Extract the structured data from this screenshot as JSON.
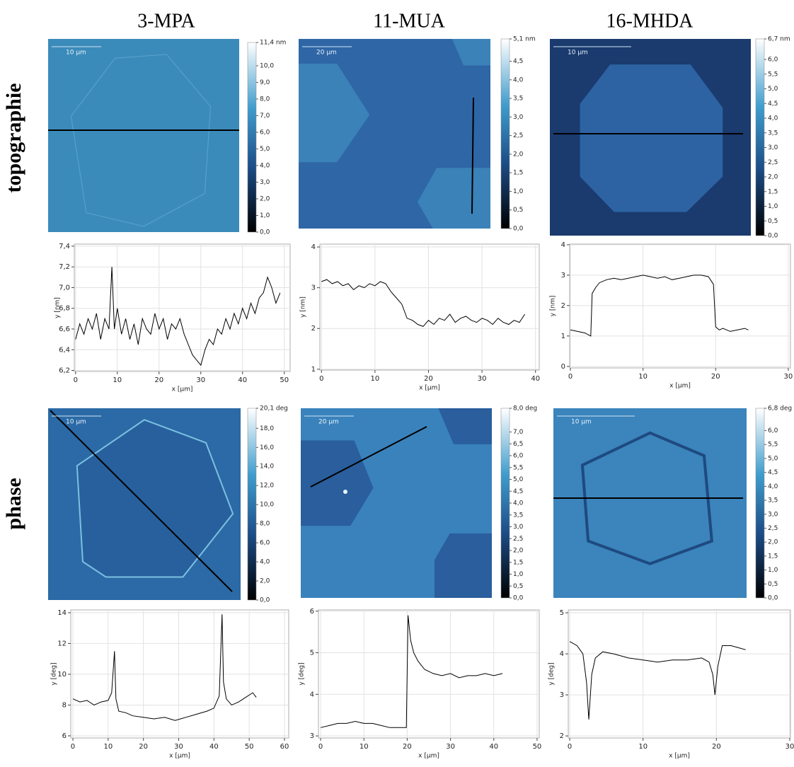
{
  "columns": [
    "3-MPA",
    "11-MUA",
    "16-MHDA"
  ],
  "rows": [
    "topographie",
    "phase"
  ],
  "panels": [
    {
      "scalebar": "10 µm",
      "colorbar": {
        "clim": [
          0,
          11.4
        ],
        "ticks": [
          {
            "value": 11.4,
            "label": "11,4 nm"
          },
          {
            "value": 10,
            "label": "10,0"
          },
          {
            "value": 9,
            "label": "9,0"
          },
          {
            "value": 8,
            "label": "8,0"
          },
          {
            "value": 7,
            "label": "7,0"
          },
          {
            "value": 6,
            "label": "6,0"
          },
          {
            "value": 5,
            "label": "5,0"
          },
          {
            "value": 4,
            "label": "4,0"
          },
          {
            "value": 3,
            "label": "3,0"
          },
          {
            "value": 2,
            "label": "2,0"
          },
          {
            "value": 1,
            "label": "1,0"
          },
          {
            "value": 0,
            "label": "0,0"
          }
        ]
      }
    },
    {
      "scalebar": "20 µm",
      "colorbar": {
        "clim": [
          0,
          5.1
        ],
        "ticks": [
          {
            "value": 5.1,
            "label": "5,1 nm"
          },
          {
            "value": 4.5,
            "label": "4,5"
          },
          {
            "value": 4,
            "label": "4,0"
          },
          {
            "value": 3.5,
            "label": "3,5"
          },
          {
            "value": 3,
            "label": "3,0"
          },
          {
            "value": 2.5,
            "label": "2,5"
          },
          {
            "value": 2,
            "label": "2,0"
          },
          {
            "value": 1.5,
            "label": "1,5"
          },
          {
            "value": 1,
            "label": "1,0"
          },
          {
            "value": 0.5,
            "label": "0,5"
          },
          {
            "value": 0,
            "label": "0,0"
          }
        ]
      }
    },
    {
      "scalebar": "10 µm",
      "colorbar": {
        "clim": [
          0,
          6.7
        ],
        "ticks": [
          {
            "value": 6.7,
            "label": "6,7 nm"
          },
          {
            "value": 6,
            "label": "6,0"
          },
          {
            "value": 5.5,
            "label": "5,5"
          },
          {
            "value": 5,
            "label": "5,0"
          },
          {
            "value": 4.5,
            "label": "4,5"
          },
          {
            "value": 4,
            "label": "4,0"
          },
          {
            "value": 3.5,
            "label": "3,5"
          },
          {
            "value": 3,
            "label": "3,0"
          },
          {
            "value": 2.5,
            "label": "2,5"
          },
          {
            "value": 2,
            "label": "2,0"
          },
          {
            "value": 1.5,
            "label": "1,5"
          },
          {
            "value": 1,
            "label": "1,0"
          },
          {
            "value": 0.5,
            "label": "0,5"
          },
          {
            "value": 0,
            "label": "0,0"
          }
        ]
      }
    },
    {
      "scalebar": "10 µm",
      "colorbar": {
        "clim": [
          0,
          20.1
        ],
        "ticks": [
          {
            "value": 20.1,
            "label": "20,1 deg"
          },
          {
            "value": 18,
            "label": "18,0"
          },
          {
            "value": 16,
            "label": "16,0"
          },
          {
            "value": 14,
            "label": "14,0"
          },
          {
            "value": 12,
            "label": "12,0"
          },
          {
            "value": 10,
            "label": "10,0"
          },
          {
            "value": 8,
            "label": "8,0"
          },
          {
            "value": 6,
            "label": "6,0"
          },
          {
            "value": 4,
            "label": "4,0"
          },
          {
            "value": 2,
            "label": "2,0"
          },
          {
            "value": 0,
            "label": "0,0"
          }
        ]
      }
    },
    {
      "scalebar": "20 µm",
      "colorbar": {
        "clim": [
          0,
          8
        ],
        "ticks": [
          {
            "value": 8,
            "label": "8,0 deg"
          },
          {
            "value": 7,
            "label": "7,0"
          },
          {
            "value": 6.5,
            "label": "6,5"
          },
          {
            "value": 6,
            "label": "6,0"
          },
          {
            "value": 5.5,
            "label": "5,5"
          },
          {
            "value": 5,
            "label": "5,0"
          },
          {
            "value": 4.5,
            "label": "4,5"
          },
          {
            "value": 4,
            "label": "4,0"
          },
          {
            "value": 3.5,
            "label": "3,5"
          },
          {
            "value": 3,
            "label": "3,0"
          },
          {
            "value": 2.5,
            "label": "2,5"
          },
          {
            "value": 2,
            "label": "2,0"
          },
          {
            "value": 1.5,
            "label": "1,5"
          },
          {
            "value": 1,
            "label": "1,0"
          },
          {
            "value": 0.5,
            "label": "0,5"
          },
          {
            "value": 0,
            "label": "0,0"
          }
        ]
      }
    },
    {
      "scalebar": "10 µm",
      "colorbar": {
        "clim": [
          0,
          6.8
        ],
        "ticks": [
          {
            "value": 6.8,
            "label": "6,8 deg"
          },
          {
            "value": 6,
            "label": "6,0"
          },
          {
            "value": 5.5,
            "label": "5,5"
          },
          {
            "value": 5,
            "label": "5,0"
          },
          {
            "value": 4.5,
            "label": "4,5"
          },
          {
            "value": 4,
            "label": "4,0"
          },
          {
            "value": 3.5,
            "label": "3,5"
          },
          {
            "value": 3,
            "label": "3,0"
          },
          {
            "value": 2.5,
            "label": "2,5"
          },
          {
            "value": 2,
            "label": "2,0"
          },
          {
            "value": 1.5,
            "label": "1,5"
          },
          {
            "value": 1,
            "label": "1,0"
          },
          {
            "value": 0.5,
            "label": "0,5"
          },
          {
            "value": 0,
            "label": "0,0"
          }
        ]
      }
    }
  ],
  "chart_data": [
    {
      "type": "line",
      "xlabel": "x [µm]",
      "ylabel": "y [nm]",
      "color": "#000000",
      "grid": true,
      "xlim": [
        -0.3,
        51.4
      ],
      "ylim": [
        6.19,
        7.42
      ],
      "xticks": [
        0,
        10,
        20,
        30,
        40,
        50
      ],
      "yticks": [
        {
          "value": 6.2,
          "label": "6,2"
        },
        {
          "value": 6.4,
          "label": "6,4"
        },
        {
          "value": 6.6,
          "label": "6,6"
        },
        {
          "value": 6.8,
          "label": "6,8"
        },
        {
          "value": 7.0,
          "label": "7,0"
        },
        {
          "value": 7.2,
          "label": "7,2"
        },
        {
          "value": 7.4,
          "label": "7,4"
        }
      ],
      "x": [
        0,
        1,
        2,
        3,
        4,
        5,
        6,
        7,
        8,
        8.7,
        9.3,
        10,
        11,
        12,
        13,
        14,
        15,
        16,
        17,
        18,
        19,
        20,
        21,
        22,
        23,
        24,
        25,
        26,
        27,
        28,
        29,
        30,
        31,
        32,
        33,
        34,
        35,
        36,
        37,
        38,
        39,
        40,
        41,
        42,
        43,
        44,
        45,
        46,
        47,
        48,
        49
      ],
      "values": [
        6.5,
        6.65,
        6.55,
        6.7,
        6.6,
        6.75,
        6.5,
        6.7,
        6.6,
        7.2,
        6.6,
        6.8,
        6.55,
        6.7,
        6.5,
        6.65,
        6.45,
        6.7,
        6.6,
        6.55,
        6.75,
        6.6,
        6.7,
        6.5,
        6.65,
        6.6,
        6.7,
        6.55,
        6.45,
        6.35,
        6.3,
        6.25,
        6.4,
        6.5,
        6.45,
        6.6,
        6.55,
        6.7,
        6.6,
        6.75,
        6.65,
        6.8,
        6.7,
        6.85,
        6.75,
        6.9,
        6.95,
        7.1,
        7.0,
        6.85,
        6.95
      ]
    },
    {
      "type": "line",
      "xlabel": "x [µm]",
      "ylabel": "y [nm]",
      "color": "#000000",
      "grid": true,
      "xlim": [
        -0.3,
        40.7
      ],
      "ylim": [
        0.98,
        4.07
      ],
      "xticks": [
        0,
        10,
        20,
        30,
        40
      ],
      "yticks": [
        1,
        2,
        3,
        4
      ],
      "x": [
        0,
        1,
        2,
        3,
        4,
        5,
        6,
        7,
        8,
        9,
        10,
        11,
        12,
        13,
        14,
        15,
        16,
        17,
        18,
        19,
        20,
        21,
        22,
        23,
        24,
        25,
        26,
        27,
        28,
        29,
        30,
        31,
        32,
        33,
        34,
        35,
        36,
        37,
        38
      ],
      "values": [
        3.15,
        3.2,
        3.1,
        3.15,
        3.05,
        3.1,
        2.95,
        3.05,
        3.0,
        3.1,
        3.05,
        3.15,
        3.1,
        2.9,
        2.75,
        2.6,
        2.25,
        2.2,
        2.1,
        2.05,
        2.2,
        2.1,
        2.25,
        2.2,
        2.35,
        2.15,
        2.25,
        2.3,
        2.2,
        2.15,
        2.25,
        2.2,
        2.1,
        2.25,
        2.15,
        2.1,
        2.2,
        2.15,
        2.35
      ]
    },
    {
      "type": "line",
      "xlabel": "x [µm]",
      "ylabel": "y [nm]",
      "color": "#000000",
      "grid": true,
      "xlim": [
        -0.1,
        30.3
      ],
      "ylim": [
        -0.05,
        4.02
      ],
      "xticks": [
        0,
        10,
        20,
        30
      ],
      "yticks": [
        0,
        1,
        2,
        3,
        4
      ],
      "x": [
        0,
        1,
        2,
        2.8,
        3.0,
        3.5,
        4,
        5,
        6,
        7,
        8,
        9,
        10,
        11,
        12,
        13,
        14,
        15,
        16,
        17,
        18,
        19,
        19.7,
        20,
        20.5,
        21,
        22,
        23,
        24,
        24.5
      ],
      "values": [
        1.2,
        1.15,
        1.1,
        1.0,
        2.4,
        2.6,
        2.75,
        2.85,
        2.9,
        2.85,
        2.9,
        2.95,
        3.0,
        2.95,
        2.9,
        2.95,
        2.85,
        2.9,
        2.95,
        3.0,
        3.0,
        2.95,
        2.7,
        1.3,
        1.2,
        1.25,
        1.15,
        1.2,
        1.25,
        1.2
      ]
    },
    {
      "type": "line",
      "xlabel": "x [µm]",
      "ylabel": "y [deg]",
      "color": "#000000",
      "grid": true,
      "xlim": [
        -0.6,
        61.2
      ],
      "ylim": [
        5.86,
        14.18
      ],
      "xticks": [
        0,
        10,
        20,
        30,
        40,
        50,
        60
      ],
      "yticks": [
        6,
        8,
        10,
        12,
        14
      ],
      "x": [
        0,
        2,
        4,
        6,
        8,
        10,
        11,
        11.8,
        12.2,
        13,
        15,
        17,
        20,
        23,
        26,
        29,
        32,
        35,
        38,
        40,
        41.5,
        42.3,
        42.7,
        43.5,
        45,
        47,
        49,
        51,
        52
      ],
      "values": [
        8.4,
        8.2,
        8.3,
        8.0,
        8.2,
        8.3,
        8.8,
        11.5,
        8.4,
        7.6,
        7.5,
        7.3,
        7.2,
        7.1,
        7.2,
        7.0,
        7.2,
        7.4,
        7.6,
        7.8,
        8.6,
        13.9,
        9.5,
        8.4,
        8.0,
        8.2,
        8.5,
        8.8,
        8.5
      ]
    },
    {
      "type": "line",
      "xlabel": "x [µm]",
      "ylabel": "y [deg]",
      "color": "#000000",
      "grid": true,
      "xlim": [
        -0.5,
        50.5
      ],
      "ylim": [
        2.95,
        6.03
      ],
      "xticks": [
        0,
        10,
        20,
        30,
        40,
        50
      ],
      "yticks": [
        3,
        4,
        5,
        6
      ],
      "x": [
        0,
        2,
        4,
        6,
        8,
        10,
        12,
        14,
        16,
        18,
        19.8,
        20.2,
        20.8,
        21.5,
        22.5,
        24,
        26,
        28,
        30,
        32,
        34,
        36,
        38,
        40,
        42
      ],
      "values": [
        3.2,
        3.25,
        3.3,
        3.3,
        3.35,
        3.3,
        3.3,
        3.25,
        3.2,
        3.2,
        3.2,
        5.9,
        5.3,
        5.0,
        4.8,
        4.6,
        4.5,
        4.45,
        4.5,
        4.4,
        4.45,
        4.45,
        4.5,
        4.45,
        4.5
      ]
    },
    {
      "type": "line",
      "xlabel": "x [µm]",
      "ylabel": "y [deg]",
      "color": "#000000",
      "grid": true,
      "xlim": [
        -0.2,
        30.1
      ],
      "ylim": [
        1.95,
        5.07
      ],
      "xticks": [
        0,
        10,
        20,
        30
      ],
      "yticks": [
        2,
        3,
        4,
        5
      ],
      "x": [
        0,
        1,
        1.8,
        2.3,
        2.6,
        3.0,
        3.5,
        4.5,
        6,
        8,
        10,
        12,
        14,
        16,
        18,
        19,
        19.5,
        19.8,
        20.2,
        20.8,
        22,
        23,
        24
      ],
      "values": [
        4.3,
        4.2,
        4.0,
        3.3,
        2.4,
        3.5,
        3.9,
        4.05,
        4.0,
        3.9,
        3.85,
        3.8,
        3.85,
        3.85,
        3.9,
        3.8,
        3.5,
        3.0,
        3.7,
        4.2,
        4.2,
        4.15,
        4.1
      ]
    }
  ]
}
